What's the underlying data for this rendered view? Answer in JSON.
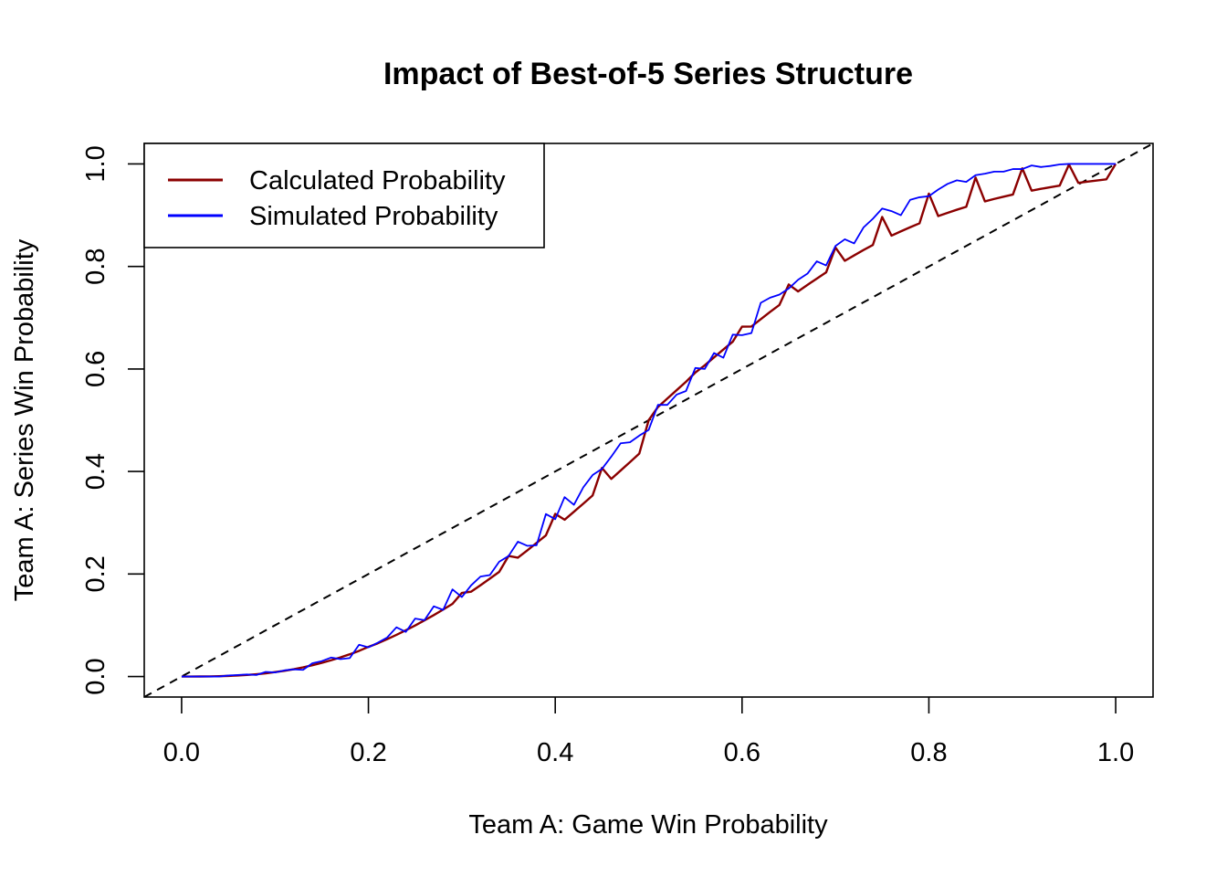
{
  "chart_data": {
    "type": "line",
    "title": "Impact of Best-of-5 Series Structure",
    "xlabel": "Team A: Game Win Probability",
    "ylabel": "Team A: Series Win Probability",
    "xlim": [
      -0.04,
      1.04
    ],
    "ylim": [
      -0.04,
      1.04
    ],
    "xticks": [
      "0.0",
      "0.2",
      "0.4",
      "0.6",
      "0.8",
      "1.0"
    ],
    "yticks": [
      "0.0",
      "0.2",
      "0.4",
      "0.6",
      "0.8",
      "1.0"
    ],
    "legend_position": "top-left",
    "reference_line": {
      "from": [
        0,
        0
      ],
      "to": [
        1,
        1
      ],
      "style": "dashed",
      "color": "#000000"
    },
    "series": [
      {
        "name": "Calculated Probability",
        "color": "#8b0000",
        "x": [
          0.0,
          0.01,
          0.02,
          0.03,
          0.04,
          0.05,
          0.06,
          0.07,
          0.08,
          0.09,
          0.1,
          0.11,
          0.12,
          0.13,
          0.14,
          0.15,
          0.16,
          0.17,
          0.18,
          0.19,
          0.2,
          0.21,
          0.22,
          0.23,
          0.24,
          0.25,
          0.26,
          0.27,
          0.28,
          0.29,
          0.3,
          0.31,
          0.32,
          0.33,
          0.34,
          0.35,
          0.36,
          0.37,
          0.38,
          0.39,
          0.4,
          0.41,
          0.42,
          0.43,
          0.44,
          0.45,
          0.46,
          0.47,
          0.48,
          0.49,
          0.5,
          0.51,
          0.52,
          0.53,
          0.54,
          0.55,
          0.56,
          0.57,
          0.58,
          0.59,
          0.6,
          0.61,
          0.62,
          0.63,
          0.64,
          0.65,
          0.66,
          0.67,
          0.68,
          0.69,
          0.7,
          0.71,
          0.72,
          0.73,
          0.74,
          0.75,
          0.76,
          0.77,
          0.78,
          0.79,
          0.8,
          0.81,
          0.82,
          0.83,
          0.84,
          0.85,
          0.86,
          0.87,
          0.88,
          0.89,
          0.9,
          0.91,
          0.92,
          0.93,
          0.94,
          0.95,
          0.96,
          0.97,
          0.98,
          0.99,
          1.0
        ],
        "y": [
          0.0,
          0.0,
          0.0001,
          0.0003,
          0.0006,
          0.0012,
          0.002,
          0.0031,
          0.0045,
          0.0063,
          0.0086,
          0.0112,
          0.0143,
          0.0179,
          0.022,
          0.0266,
          0.0317,
          0.0373,
          0.0434,
          0.0501,
          0.0579,
          0.0648,
          0.0728,
          0.0813,
          0.0902,
          0.0996,
          0.1095,
          0.1198,
          0.1306,
          0.1418,
          0.1631,
          0.1656,
          0.1781,
          0.191,
          0.2042,
          0.2352,
          0.2318,
          0.246,
          0.2606,
          0.2754,
          0.3174,
          0.3059,
          0.3214,
          0.3372,
          0.3532,
          0.4069,
          0.3855,
          0.4019,
          0.4183,
          0.435,
          0.5,
          0.5259,
          0.5424,
          0.5587,
          0.5751,
          0.5931,
          0.6071,
          0.6226,
          0.638,
          0.6531,
          0.6826,
          0.6828,
          0.697,
          0.7112,
          0.7249,
          0.7648,
          0.7513,
          0.764,
          0.7763,
          0.7884,
          0.8369,
          0.811,
          0.8216,
          0.832,
          0.8418,
          0.8965,
          0.8601,
          0.8685,
          0.8765,
          0.8842,
          0.9421,
          0.8983,
          0.9046,
          0.9107,
          0.9164,
          0.9734,
          0.9269,
          0.9317,
          0.9361,
          0.9403,
          0.9914,
          0.9479,
          0.9514,
          0.9546,
          0.9576,
          0.9988,
          0.9631,
          0.9655,
          0.9678,
          0.9699,
          1.0
        ]
      },
      {
        "name": "Simulated Probability",
        "color": "#0000ff",
        "x": [
          0.0,
          0.01,
          0.02,
          0.03,
          0.04,
          0.05,
          0.06,
          0.07,
          0.08,
          0.09,
          0.1,
          0.11,
          0.12,
          0.13,
          0.14,
          0.15,
          0.16,
          0.17,
          0.18,
          0.19,
          0.2,
          0.21,
          0.22,
          0.23,
          0.24,
          0.25,
          0.26,
          0.27,
          0.28,
          0.29,
          0.3,
          0.31,
          0.32,
          0.33,
          0.34,
          0.35,
          0.36,
          0.37,
          0.38,
          0.39,
          0.4,
          0.41,
          0.42,
          0.43,
          0.44,
          0.45,
          0.46,
          0.47,
          0.48,
          0.49,
          0.5,
          0.51,
          0.52,
          0.53,
          0.54,
          0.55,
          0.56,
          0.57,
          0.58,
          0.59,
          0.6,
          0.61,
          0.62,
          0.63,
          0.64,
          0.65,
          0.66,
          0.67,
          0.68,
          0.69,
          0.7,
          0.71,
          0.72,
          0.73,
          0.74,
          0.75,
          0.76,
          0.77,
          0.78,
          0.79,
          0.8,
          0.81,
          0.82,
          0.83,
          0.84,
          0.85,
          0.86,
          0.87,
          0.88,
          0.89,
          0.9,
          0.91,
          0.92,
          0.93,
          0.94,
          0.95,
          0.96,
          0.97,
          0.98,
          0.99,
          1.0
        ],
        "y": [
          0.0,
          0.0,
          0.0,
          0.0,
          0.0,
          0.002,
          0.003,
          0.004,
          0.003,
          0.009,
          0.008,
          0.012,
          0.014,
          0.013,
          0.026,
          0.03,
          0.037,
          0.034,
          0.036,
          0.062,
          0.057,
          0.066,
          0.076,
          0.096,
          0.087,
          0.113,
          0.11,
          0.137,
          0.13,
          0.17,
          0.155,
          0.178,
          0.195,
          0.198,
          0.224,
          0.235,
          0.263,
          0.255,
          0.256,
          0.317,
          0.307,
          0.35,
          0.335,
          0.369,
          0.393,
          0.405,
          0.429,
          0.455,
          0.457,
          0.47,
          0.481,
          0.53,
          0.53,
          0.55,
          0.557,
          0.602,
          0.6,
          0.631,
          0.622,
          0.667,
          0.666,
          0.67,
          0.729,
          0.739,
          0.745,
          0.757,
          0.774,
          0.786,
          0.81,
          0.802,
          0.84,
          0.853,
          0.845,
          0.876,
          0.893,
          0.913,
          0.908,
          0.9,
          0.93,
          0.935,
          0.937,
          0.95,
          0.961,
          0.968,
          0.965,
          0.978,
          0.981,
          0.985,
          0.985,
          0.99,
          0.99,
          0.997,
          0.994,
          0.996,
          0.999,
          1.0,
          1.0,
          1.0,
          1.0,
          1.0,
          1.0
        ]
      }
    ]
  }
}
